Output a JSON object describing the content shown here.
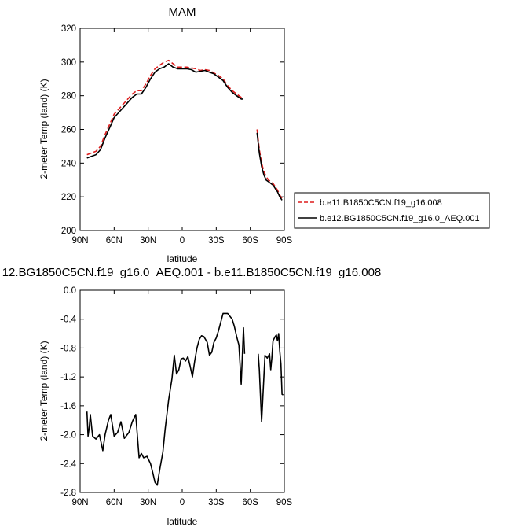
{
  "chart_data": [
    {
      "type": "line",
      "title": "MAM",
      "xlabel": "latitude",
      "ylabel": "2-meter Temp (land) (K)",
      "xlim": [
        90,
        -90
      ],
      "ylim": [
        200,
        320
      ],
      "x_ticks": [
        90,
        60,
        30,
        0,
        -30,
        -60,
        -90
      ],
      "x_tick_labels": [
        "90N",
        "60N",
        "30N",
        "0",
        "30S",
        "60S",
        "90S"
      ],
      "y_ticks": [
        200,
        220,
        240,
        260,
        280,
        300,
        320
      ],
      "y_tick_labels": [
        "200",
        "220",
        "240",
        "260",
        "280",
        "300",
        "320"
      ],
      "legend_position": "right",
      "series": [
        {
          "name": "b.e11.B1850C5CN.f19_g16.008",
          "color": "#dd1c1c",
          "dash": "dashed",
          "segments": [
            [
              [
                84,
                245
              ],
              [
                80,
                246
              ],
              [
                76,
                247
              ],
              [
                72,
                250
              ],
              [
                68,
                257
              ],
              [
                64,
                263
              ],
              [
                60,
                269
              ],
              [
                56,
                272
              ],
              [
                52,
                275
              ],
              [
                48,
                278
              ],
              [
                44,
                281
              ],
              [
                40,
                283
              ],
              [
                36,
                283
              ],
              [
                32,
                287
              ],
              [
                28,
                292
              ],
              [
                24,
                296
              ],
              [
                20,
                298
              ],
              [
                16,
                300
              ],
              [
                12,
                301
              ],
              [
                8,
                299
              ],
              [
                4,
                297
              ],
              [
                0,
                297
              ],
              [
                -4,
                297
              ],
              [
                -8,
                296.5
              ],
              [
                -12,
                296
              ],
              [
                -16,
                295
              ],
              [
                -20,
                295.5
              ],
              [
                -24,
                295
              ],
              [
                -28,
                293.5
              ],
              [
                -32,
                292
              ],
              [
                -36,
                290
              ],
              [
                -40,
                286
              ],
              [
                -44,
                283
              ],
              [
                -48,
                281
              ],
              [
                -52,
                279
              ],
              [
                -54,
                279
              ]
            ],
            [
              [
                -66,
                260
              ],
              [
                -68,
                248
              ],
              [
                -70,
                240
              ],
              [
                -72,
                235
              ],
              [
                -74,
                232
              ],
              [
                -76,
                230
              ],
              [
                -78,
                229
              ],
              [
                -80,
                228
              ],
              [
                -82,
                226
              ],
              [
                -84,
                224
              ],
              [
                -86,
                221
              ],
              [
                -88,
                219
              ]
            ]
          ]
        },
        {
          "name": "b.e12.BG1850C5CN.f19_g16.0_AEQ.001",
          "color": "#000000",
          "dash": "solid",
          "segments": [
            [
              [
                84,
                243
              ],
              [
                80,
                244
              ],
              [
                76,
                245
              ],
              [
                72,
                248
              ],
              [
                68,
                255
              ],
              [
                64,
                261
              ],
              [
                60,
                267
              ],
              [
                56,
                270
              ],
              [
                52,
                273
              ],
              [
                48,
                276
              ],
              [
                44,
                279
              ],
              [
                40,
                281
              ],
              [
                36,
                281
              ],
              [
                32,
                285
              ],
              [
                28,
                290
              ],
              [
                24,
                294
              ],
              [
                20,
                296
              ],
              [
                16,
                297
              ],
              [
                12,
                299
              ],
              [
                8,
                297
              ],
              [
                4,
                296
              ],
              [
                0,
                296
              ],
              [
                -4,
                296
              ],
              [
                -8,
                295.5
              ],
              [
                -12,
                294
              ],
              [
                -16,
                294.5
              ],
              [
                -20,
                295
              ],
              [
                -24,
                294
              ],
              [
                -28,
                293
              ],
              [
                -32,
                291
              ],
              [
                -36,
                289
              ],
              [
                -40,
                285
              ],
              [
                -44,
                282
              ],
              [
                -48,
                280
              ],
              [
                -52,
                278
              ],
              [
                -54,
                278
              ]
            ],
            [
              [
                -66,
                258
              ],
              [
                -68,
                246
              ],
              [
                -70,
                238
              ],
              [
                -72,
                233
              ],
              [
                -74,
                230
              ],
              [
                -76,
                229
              ],
              [
                -78,
                228
              ],
              [
                -80,
                227
              ],
              [
                -82,
                225
              ],
              [
                -84,
                223
              ],
              [
                -86,
                220
              ],
              [
                -88,
                218
              ]
            ]
          ]
        }
      ]
    },
    {
      "type": "line",
      "title": "12.BG1850C5CN.f19_g16.0_AEQ.001 - b.e11.B1850C5CN.f19_g16.008",
      "xlabel": "latitude",
      "ylabel": "2-meter Temp (land) (K)",
      "xlim": [
        90,
        -90
      ],
      "ylim": [
        -2.8,
        0.0
      ],
      "x_ticks": [
        90,
        60,
        30,
        0,
        -30,
        -60,
        -90
      ],
      "x_tick_labels": [
        "90N",
        "60N",
        "30N",
        "0",
        "30S",
        "60S",
        "90S"
      ],
      "y_ticks": [
        -2.8,
        -2.4,
        -2.0,
        -1.6,
        -1.2,
        -0.8,
        -0.4,
        0.0
      ],
      "y_tick_labels": [
        "-2.8",
        "-2.4",
        "-2.0",
        "-1.6",
        "-1.2",
        "-0.8",
        "-0.4",
        "0.0"
      ],
      "series": [
        {
          "color": "#000000",
          "dash": "solid",
          "segments": [
            [
              [
                84,
                -1.68
              ],
              [
                83,
                -2.02
              ],
              [
                82,
                -1.9
              ],
              [
                81,
                -1.72
              ],
              [
                79,
                -2.02
              ],
              [
                76,
                -2.06
              ],
              [
                73,
                -2.0
              ],
              [
                70,
                -2.22
              ],
              [
                68,
                -2.0
              ],
              [
                65,
                -1.8
              ],
              [
                63,
                -1.72
              ],
              [
                60,
                -2.02
              ],
              [
                57,
                -1.97
              ],
              [
                54,
                -1.82
              ],
              [
                51,
                -2.05
              ],
              [
                47,
                -1.97
              ],
              [
                44,
                -1.82
              ],
              [
                41,
                -1.72
              ],
              [
                38,
                -2.32
              ],
              [
                36,
                -2.26
              ],
              [
                34,
                -2.32
              ],
              [
                31,
                -2.3
              ],
              [
                28,
                -2.4
              ],
              [
                26,
                -2.52
              ],
              [
                24,
                -2.66
              ],
              [
                22,
                -2.7
              ],
              [
                20,
                -2.5
              ],
              [
                17,
                -2.24
              ],
              [
                15,
                -1.92
              ],
              [
                12,
                -1.52
              ],
              [
                9,
                -1.22
              ],
              [
                7,
                -0.9
              ],
              [
                5,
                -1.16
              ],
              [
                3,
                -1.1
              ],
              [
                1,
                -0.95
              ],
              [
                -1,
                -0.94
              ],
              [
                -3,
                -0.98
              ],
              [
                -5,
                -0.92
              ],
              [
                -7,
                -1.05
              ],
              [
                -9,
                -1.2
              ],
              [
                -11,
                -0.98
              ],
              [
                -13,
                -0.8
              ],
              [
                -15,
                -0.68
              ],
              [
                -17,
                -0.63
              ],
              [
                -19,
                -0.64
              ],
              [
                -22,
                -0.72
              ],
              [
                -24,
                -0.9
              ],
              [
                -26,
                -0.86
              ],
              [
                -28,
                -0.72
              ],
              [
                -30,
                -0.66
              ],
              [
                -32,
                -0.56
              ],
              [
                -34,
                -0.44
              ],
              [
                -36,
                -0.32
              ],
              [
                -38,
                -0.32
              ],
              [
                -40,
                -0.32
              ],
              [
                -42,
                -0.36
              ],
              [
                -44,
                -0.4
              ],
              [
                -46,
                -0.5
              ],
              [
                -48,
                -0.64
              ],
              [
                -50,
                -0.76
              ],
              [
                -52,
                -1.3
              ],
              [
                -53,
                -0.9
              ],
              [
                -54,
                -0.52
              ],
              [
                -55,
                -0.88
              ]
            ],
            [
              [
                -67,
                -0.88
              ],
              [
                -68,
                -1.1
              ],
              [
                -69,
                -1.48
              ],
              [
                -70,
                -1.82
              ],
              [
                -71,
                -1.5
              ],
              [
                -72,
                -1.2
              ],
              [
                -73,
                -0.9
              ],
              [
                -75,
                -0.94
              ],
              [
                -77,
                -0.88
              ],
              [
                -78,
                -1.1
              ],
              [
                -79,
                -0.94
              ],
              [
                -80,
                -0.7
              ],
              [
                -82,
                -0.64
              ],
              [
                -83,
                -0.62
              ],
              [
                -84,
                -0.7
              ],
              [
                -85,
                -0.6
              ],
              [
                -86,
                -0.84
              ],
              [
                -87,
                -1.02
              ],
              [
                -88,
                -1.44
              ],
              [
                -89,
                -1.45
              ]
            ]
          ]
        }
      ]
    }
  ]
}
